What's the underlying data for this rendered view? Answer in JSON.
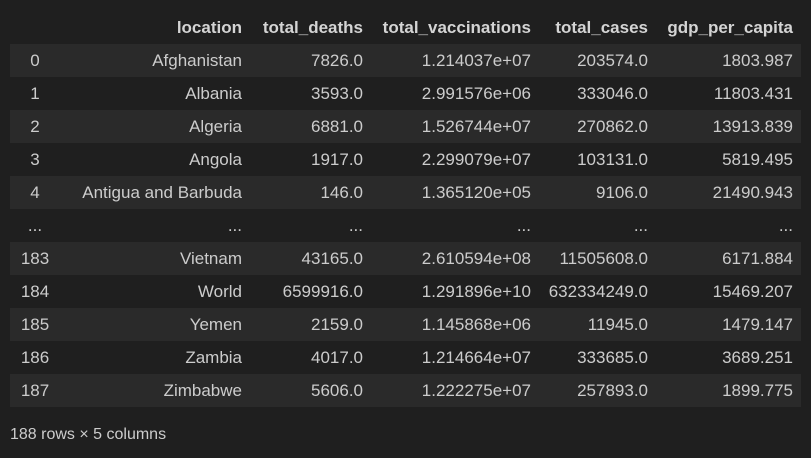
{
  "table": {
    "columns": [
      "",
      "location",
      "total_deaths",
      "total_vaccinations",
      "total_cases",
      "gdp_per_capita"
    ],
    "rows": [
      [
        "0",
        "Afghanistan",
        "7826.0",
        "1.214037e+07",
        "203574.0",
        "1803.987"
      ],
      [
        "1",
        "Albania",
        "3593.0",
        "2.991576e+06",
        "333046.0",
        "11803.431"
      ],
      [
        "2",
        "Algeria",
        "6881.0",
        "1.526744e+07",
        "270862.0",
        "13913.839"
      ],
      [
        "3",
        "Angola",
        "1917.0",
        "2.299079e+07",
        "103131.0",
        "5819.495"
      ],
      [
        "4",
        "Antigua and Barbuda",
        "146.0",
        "1.365120e+05",
        "9106.0",
        "21490.943"
      ],
      [
        "...",
        "...",
        "...",
        "...",
        "...",
        "..."
      ],
      [
        "183",
        "Vietnam",
        "43165.0",
        "2.610594e+08",
        "11505608.0",
        "6171.884"
      ],
      [
        "184",
        "World",
        "6599916.0",
        "1.291896e+10",
        "632334249.0",
        "15469.207"
      ],
      [
        "185",
        "Yemen",
        "2159.0",
        "1.145868e+06",
        "11945.0",
        "1479.147"
      ],
      [
        "186",
        "Zambia",
        "4017.0",
        "1.214664e+07",
        "333685.0",
        "3689.251"
      ],
      [
        "187",
        "Zimbabwe",
        "5606.0",
        "1.222275e+07",
        "257893.0",
        "1899.775"
      ]
    ]
  },
  "summary": "188 rows × 5 columns"
}
